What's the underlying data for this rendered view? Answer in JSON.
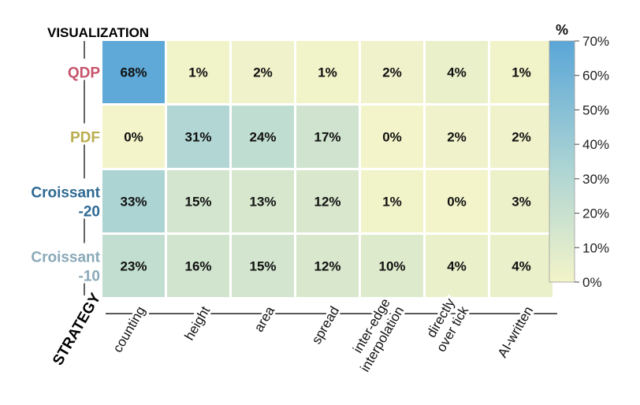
{
  "chart_data": {
    "type": "heatmap",
    "y_axis_title": "VISUALIZATION",
    "x_axis_title": "STRATEGY",
    "rows": [
      {
        "label": [
          "QDP"
        ],
        "color": "#c7546b"
      },
      {
        "label": [
          "PDF"
        ],
        "color": "#b9ad4f"
      },
      {
        "label": [
          "Croissant",
          "-20"
        ],
        "color": "#2f6a93"
      },
      {
        "label": [
          "Croissant",
          "-10"
        ],
        "color": "#8aa9b8"
      }
    ],
    "columns": [
      [
        "counting"
      ],
      [
        "height"
      ],
      [
        "area"
      ],
      [
        "spread"
      ],
      [
        "inter-edge",
        "interpolation"
      ],
      [
        "directly",
        "over tick"
      ],
      [
        "AI-written"
      ]
    ],
    "values": [
      [
        68,
        1,
        2,
        1,
        2,
        4,
        1
      ],
      [
        0,
        31,
        24,
        17,
        0,
        2,
        2
      ],
      [
        33,
        15,
        13,
        12,
        1,
        0,
        3
      ],
      [
        23,
        16,
        15,
        12,
        10,
        4,
        4
      ]
    ],
    "value_suffix": "%",
    "colorbar": {
      "title": "%",
      "range": [
        0,
        70
      ],
      "ticks": [
        "0%",
        "10%",
        "20%",
        "30%",
        "40%",
        "50%",
        "60%",
        "70%"
      ],
      "color_low": "#f3f4c9",
      "color_mid": "#a8d2d4",
      "color_high": "#5aa6d8"
    }
  }
}
